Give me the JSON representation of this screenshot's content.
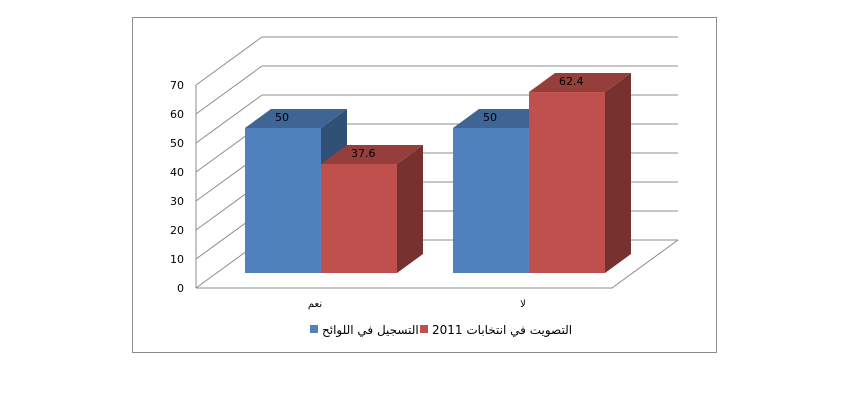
{
  "chart_data": {
    "type": "bar",
    "style": "3d-clustered-column",
    "categories": [
      "نعم",
      "لا"
    ],
    "series": [
      {
        "name": "التسجيل في اللوائح",
        "color": "#4f81bd",
        "values": [
          50,
          50
        ]
      },
      {
        "name": "التصويت في انتخابات 2011",
        "color": "#c0504d",
        "values": [
          37.6,
          62.4
        ]
      }
    ],
    "ylim": [
      0,
      70
    ],
    "yticks": [
      0,
      10,
      20,
      30,
      40,
      50,
      60,
      70
    ],
    "grid": true,
    "legend": "bottom",
    "data_labels": true
  }
}
